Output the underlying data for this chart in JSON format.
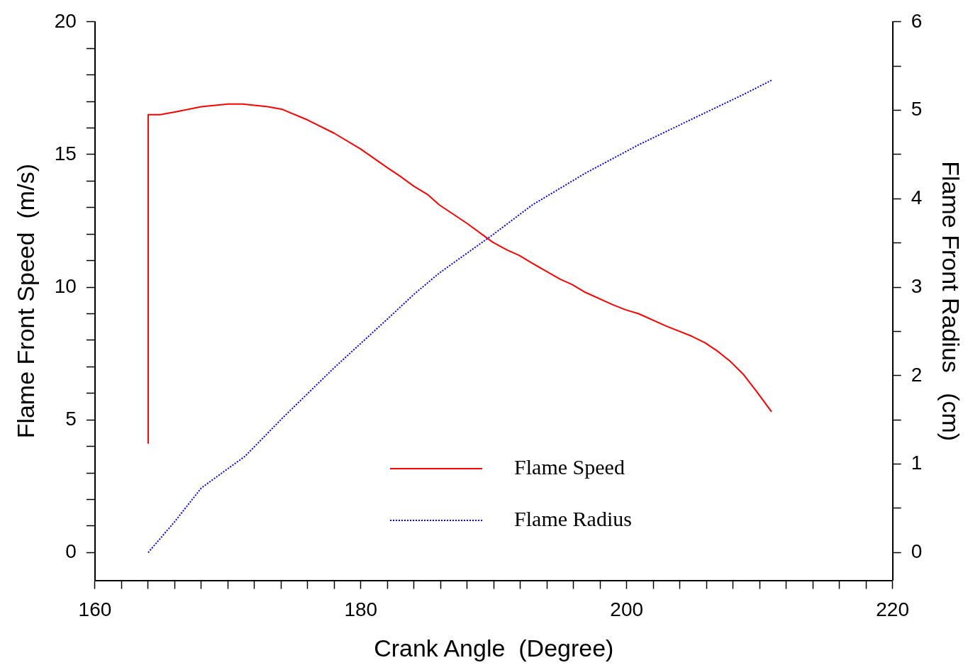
{
  "chart_data": {
    "type": "line",
    "xlabel": "Crank Angle  (Degree)",
    "ylabel": "Flame Front Speed  (m/s)",
    "y2label": "Flame Front Radius   (cm)",
    "xlim": [
      160,
      220
    ],
    "xticks": [
      160,
      {
        "value": 162,
        "label": null
      },
      {
        "value": 164,
        "label": null
      },
      {
        "value": 166,
        "label": null
      },
      {
        "value": 168,
        "label": null
      },
      {
        "value": 170,
        "label": null
      },
      {
        "value": 172,
        "label": null
      },
      {
        "value": 174,
        "label": null
      },
      {
        "value": 176,
        "label": null
      },
      {
        "value": 178,
        "label": null
      },
      180,
      {
        "value": 182,
        "label": null
      },
      {
        "value": 184,
        "label": null
      },
      {
        "value": 186,
        "label": null
      },
      {
        "value": 188,
        "label": null
      },
      {
        "value": 190,
        "label": null
      },
      {
        "value": 192,
        "label": null
      },
      {
        "value": 194,
        "label": null
      },
      {
        "value": 196,
        "label": null
      },
      {
        "value": 198,
        "label": null
      },
      200,
      {
        "value": 202,
        "label": null
      },
      {
        "value": 204,
        "label": null
      },
      {
        "value": 206,
        "label": null
      },
      {
        "value": 208,
        "label": null
      },
      {
        "value": 210,
        "label": null
      },
      {
        "value": 212,
        "label": null
      },
      {
        "value": 214,
        "label": null
      },
      {
        "value": 216,
        "label": null
      },
      {
        "value": 218,
        "label": null
      },
      220
    ],
    "ylim": [
      -1.05,
      20
    ],
    "yticks": [
      0,
      {
        "value": 1,
        "label": null
      },
      {
        "value": 2,
        "label": null
      },
      {
        "value": 3,
        "label": null
      },
      {
        "value": 4,
        "label": null
      },
      5,
      {
        "value": 6,
        "label": null
      },
      {
        "value": 7,
        "label": null
      },
      {
        "value": 8,
        "label": null
      },
      {
        "value": 9,
        "label": null
      },
      10,
      {
        "value": 11,
        "label": null
      },
      {
        "value": 12,
        "label": null
      },
      {
        "value": 13,
        "label": null
      },
      {
        "value": 14,
        "label": null
      },
      15,
      {
        "value": 16,
        "label": null
      },
      {
        "value": 17,
        "label": null
      },
      {
        "value": 18,
        "label": null
      },
      {
        "value": 19,
        "label": null
      },
      20
    ],
    "y2lim": [
      -0.315,
      6
    ],
    "y2ticks": [
      0,
      {
        "value": 0.5,
        "label": null
      },
      1,
      {
        "value": 1.5,
        "label": null
      },
      2,
      {
        "value": 2.5,
        "label": null
      },
      3,
      {
        "value": 3.5,
        "label": null
      },
      4,
      {
        "value": 4.5,
        "label": null
      },
      5,
      {
        "value": 5.5,
        "label": null
      },
      6
    ],
    "legend": "bottom",
    "marker": "none",
    "series": [
      {
        "name": "Flame Speed",
        "color": "#ff0000",
        "line_style": "solid",
        "x": [
          164.0,
          164.0,
          164.9,
          166.0,
          168.0,
          170.0,
          171.1,
          173.0,
          174.1,
          176.0,
          178.0,
          180.0,
          182.0,
          182.9,
          184.0,
          185.0,
          185.9,
          188.0,
          189.9,
          191.0,
          191.9,
          192.9,
          195.0,
          195.9,
          196.9,
          198.9,
          199.9,
          200.9,
          202.9,
          204.9,
          205.9,
          206.8,
          207.8,
          208.8,
          209.8,
          210.9
        ],
        "values": [
          4.1,
          16.5,
          16.5,
          16.6,
          16.8,
          16.9,
          16.9,
          16.8,
          16.7,
          16.3,
          15.8,
          15.2,
          14.5,
          14.2,
          13.8,
          13.5,
          13.1,
          12.4,
          11.7,
          11.4,
          11.2,
          10.9,
          10.3,
          10.1,
          9.8,
          9.35,
          9.15,
          9.0,
          8.55,
          8.15,
          7.9,
          7.6,
          7.2,
          6.7,
          6.05,
          5.3
        ]
      },
      {
        "name": "Flame Radius",
        "color": "#0000ff",
        "line_style": "dotted",
        "axis": "y2",
        "x": [
          164.0,
          166.0,
          168.0,
          171.3,
          174.1,
          178.0,
          182.0,
          184.0,
          185.9,
          189.9,
          192.9,
          196.9,
          200.9,
          204.9,
          208.8,
          210.9
        ],
        "values": [
          0,
          0.35,
          0.73,
          1.09,
          1.52,
          2.09,
          2.64,
          2.92,
          3.16,
          3.59,
          3.93,
          4.29,
          4.61,
          4.9,
          5.18,
          5.34
        ]
      }
    ]
  }
}
